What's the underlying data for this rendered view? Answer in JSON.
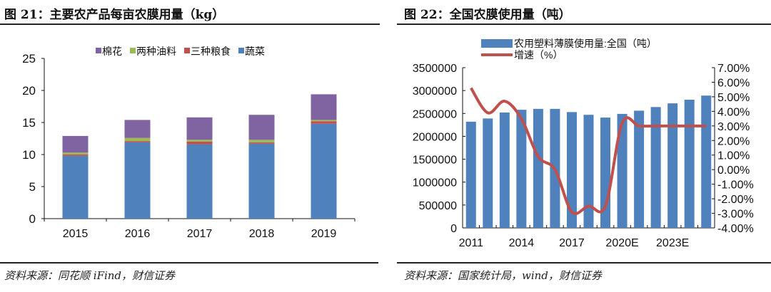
{
  "chart_data": [
    {
      "type": "bar",
      "stacked": true,
      "title": "图 21：主要农产品每亩农膜用量（kg）",
      "source": "资料来源：同花顺 iFind，财信证券",
      "categories": [
        "2015",
        "2016",
        "2017",
        "2018",
        "2019"
      ],
      "ylim": [
        0,
        25
      ],
      "yticks": [
        "0",
        "5",
        "10",
        "15",
        "20",
        "25"
      ],
      "legend_position": "top",
      "grid": false,
      "series": [
        {
          "name": "蔬菜",
          "color": "#4f81bd",
          "values": [
            9.8,
            11.9,
            11.6,
            11.7,
            14.8
          ]
        },
        {
          "name": "三种粮食",
          "color": "#c0504d",
          "values": [
            0.2,
            0.2,
            0.4,
            0.2,
            0.4
          ]
        },
        {
          "name": "两种油料",
          "color": "#9bbb59",
          "values": [
            0.3,
            0.5,
            0.3,
            0.4,
            0.2
          ]
        },
        {
          "name": "棉花",
          "color": "#8064a2",
          "values": [
            2.6,
            2.8,
            3.5,
            3.9,
            4.0
          ]
        }
      ],
      "legend_order": [
        "棉花",
        "两种油料",
        "三种粮食",
        "蔬菜"
      ]
    },
    {
      "type": "bar+line",
      "title": "图 22：全国农膜使用量（吨）",
      "source": "资料来源：国家统计局，wind，财信证券",
      "categories": [
        "2011",
        "2012",
        "2013",
        "2014",
        "2015",
        "2016",
        "2017",
        "2018",
        "2019",
        "2020E",
        "2021E",
        "2022E",
        "2023E",
        "2024E",
        "2025E"
      ],
      "xtick_labels": [
        "2011",
        "2014",
        "2017",
        "2020E",
        "2023E"
      ],
      "legend_position": "top",
      "grid": false,
      "y_left": {
        "lim": [
          0,
          3500000
        ],
        "ticks": [
          "0",
          "500000",
          "1000000",
          "1500000",
          "2000000",
          "2500000",
          "3000000",
          "3500000"
        ]
      },
      "y_right": {
        "lim": [
          -4,
          7
        ],
        "ticks": [
          "-4.00%",
          "-3.00%",
          "-2.00%",
          "-1.00%",
          "0.00%",
          "1.00%",
          "2.00%",
          "3.00%",
          "4.00%",
          "5.00%",
          "6.00%",
          "7.00%"
        ]
      },
      "series": [
        {
          "name": "农用塑料薄膜使用量:全国（吨）",
          "type": "bar",
          "axis": "left",
          "color": "#4f81bd",
          "values": [
            2320000,
            2390000,
            2520000,
            2580000,
            2600000,
            2600000,
            2530000,
            2470000,
            2410000,
            2490000,
            2560000,
            2640000,
            2720000,
            2800000,
            2890000
          ]
        },
        {
          "name": "增速（%）",
          "type": "line",
          "axis": "right",
          "color": "#c0504d",
          "values": [
            5.6,
            3.9,
            4.7,
            3.5,
            0.9,
            0.0,
            -2.9,
            -2.5,
            -2.5,
            3.2,
            3.0,
            3.0,
            3.0,
            3.0,
            3.0
          ]
        }
      ]
    }
  ]
}
